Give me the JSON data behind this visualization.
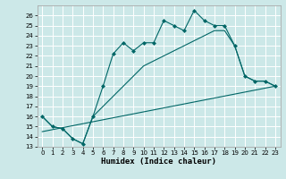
{
  "xlabel": "Humidex (Indice chaleur)",
  "xlim": [
    -0.5,
    23.5
  ],
  "ylim": [
    13,
    27
  ],
  "yticks": [
    13,
    14,
    15,
    16,
    17,
    18,
    19,
    20,
    21,
    22,
    23,
    24,
    25,
    26
  ],
  "xticks": [
    0,
    1,
    2,
    3,
    4,
    5,
    6,
    7,
    8,
    9,
    10,
    11,
    12,
    13,
    14,
    15,
    16,
    17,
    18,
    19,
    20,
    21,
    22,
    23
  ],
  "bg_color": "#cce8e8",
  "line_color": "#006666",
  "line1_x": [
    0,
    1,
    2,
    3,
    4,
    5,
    6,
    7,
    8,
    9,
    10,
    11,
    12,
    13,
    14,
    15,
    16,
    17,
    18,
    19,
    20,
    21,
    22,
    23
  ],
  "line1_y": [
    16.0,
    15.0,
    14.8,
    13.8,
    13.3,
    16.0,
    19.0,
    22.2,
    23.3,
    22.5,
    23.3,
    23.3,
    25.5,
    25.0,
    24.5,
    26.5,
    25.5,
    25.0,
    25.0,
    23.0,
    20.0,
    19.5,
    19.5,
    19.0
  ],
  "line2_x": [
    0,
    1,
    2,
    3,
    4,
    5,
    6,
    7,
    8,
    9,
    10,
    11,
    12,
    13,
    14,
    15,
    16,
    17,
    18,
    19,
    20,
    21,
    22,
    23
  ],
  "line2_y": [
    16.0,
    15.0,
    14.8,
    13.8,
    13.3,
    16.0,
    17.0,
    18.0,
    19.0,
    20.0,
    21.0,
    21.5,
    22.0,
    22.5,
    23.0,
    23.5,
    24.0,
    24.5,
    24.5,
    23.0,
    20.0,
    19.5,
    19.5,
    19.0
  ],
  "line3_x": [
    0,
    23
  ],
  "line3_y": [
    14.5,
    19.0
  ]
}
